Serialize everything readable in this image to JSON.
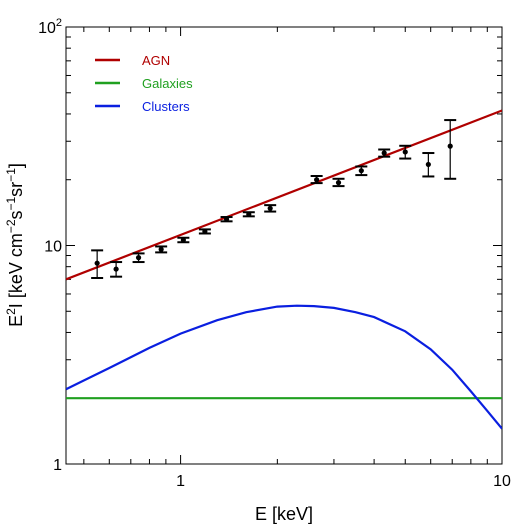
{
  "chart_data": {
    "type": "line",
    "xlabel": "E [keV]",
    "ylabel": {
      "parts": [
        {
          "text": "E",
          "sup": false
        },
        {
          "text": "2",
          "sup": true
        },
        {
          "text": "I  [keV cm",
          "sup": false
        },
        {
          "text": "−2",
          "sup": true
        },
        {
          "text": "s",
          "sup": false
        },
        {
          "text": "−1",
          "sup": true
        },
        {
          "text": "sr",
          "sup": false
        },
        {
          "text": "−1",
          "sup": true
        },
        {
          "text": "]",
          "sup": false
        }
      ]
    },
    "xscale": "log",
    "yscale": "log",
    "xlim": [
      0.44,
      10
    ],
    "ylim": [
      1,
      100
    ],
    "xticks": [
      {
        "value": 1,
        "label": "1"
      },
      {
        "value": 10,
        "label": "10"
      }
    ],
    "yticks": [
      {
        "value": 1,
        "base": "1",
        "exp": ""
      },
      {
        "value": 10,
        "base": "10",
        "exp": ""
      },
      {
        "value": 100,
        "base": "10",
        "exp": "2"
      }
    ],
    "legend": {
      "position": "top-left"
    },
    "series": [
      {
        "name": "AGN",
        "color": "#b00000",
        "x": [
          0.44,
          10
        ],
        "y": [
          7.0,
          41.5
        ]
      },
      {
        "name": "Galaxies",
        "color": "#20a020",
        "x": [
          0.44,
          10
        ],
        "y": [
          2.0,
          2.0
        ]
      },
      {
        "name": "Clusters",
        "color": "#0a1fe0",
        "x": [
          0.44,
          0.6,
          0.8,
          1.0,
          1.3,
          1.6,
          2.0,
          2.3,
          2.6,
          3.0,
          3.5,
          4.0,
          5.0,
          6.0,
          7.0,
          8.0,
          9.0,
          10.0
        ],
        "y": [
          2.2,
          2.75,
          3.4,
          3.95,
          4.55,
          4.95,
          5.25,
          5.3,
          5.28,
          5.18,
          4.95,
          4.7,
          4.05,
          3.35,
          2.7,
          2.15,
          1.75,
          1.45
        ]
      }
    ],
    "data_points": {
      "color": "#000000",
      "points": [
        {
          "x": 0.55,
          "y": 8.3,
          "ylo": 7.1,
          "yhi": 9.5
        },
        {
          "x": 0.63,
          "y": 7.8,
          "ylo": 7.2,
          "yhi": 8.4
        },
        {
          "x": 0.74,
          "y": 8.8,
          "ylo": 8.4,
          "yhi": 9.2
        },
        {
          "x": 0.87,
          "y": 9.6,
          "ylo": 9.3,
          "yhi": 9.9
        },
        {
          "x": 1.02,
          "y": 10.6,
          "ylo": 10.35,
          "yhi": 10.85
        },
        {
          "x": 1.19,
          "y": 11.6,
          "ylo": 11.35,
          "yhi": 11.85
        },
        {
          "x": 1.39,
          "y": 13.2,
          "ylo": 12.9,
          "yhi": 13.5
        },
        {
          "x": 1.63,
          "y": 13.9,
          "ylo": 13.6,
          "yhi": 14.2
        },
        {
          "x": 1.9,
          "y": 14.8,
          "ylo": 14.3,
          "yhi": 15.3
        },
        {
          "x": 2.65,
          "y": 20.0,
          "ylo": 19.3,
          "yhi": 20.8
        },
        {
          "x": 3.1,
          "y": 19.4,
          "ylo": 18.7,
          "yhi": 20.2
        },
        {
          "x": 3.65,
          "y": 22.0,
          "ylo": 21.0,
          "yhi": 23.0
        },
        {
          "x": 4.3,
          "y": 26.5,
          "ylo": 25.5,
          "yhi": 27.5
        },
        {
          "x": 5.0,
          "y": 26.8,
          "ylo": 25.0,
          "yhi": 28.6
        },
        {
          "x": 5.9,
          "y": 23.5,
          "ylo": 20.7,
          "yhi": 26.5
        },
        {
          "x": 6.9,
          "y": 28.5,
          "ylo": 20.2,
          "yhi": 37.5
        }
      ]
    }
  }
}
